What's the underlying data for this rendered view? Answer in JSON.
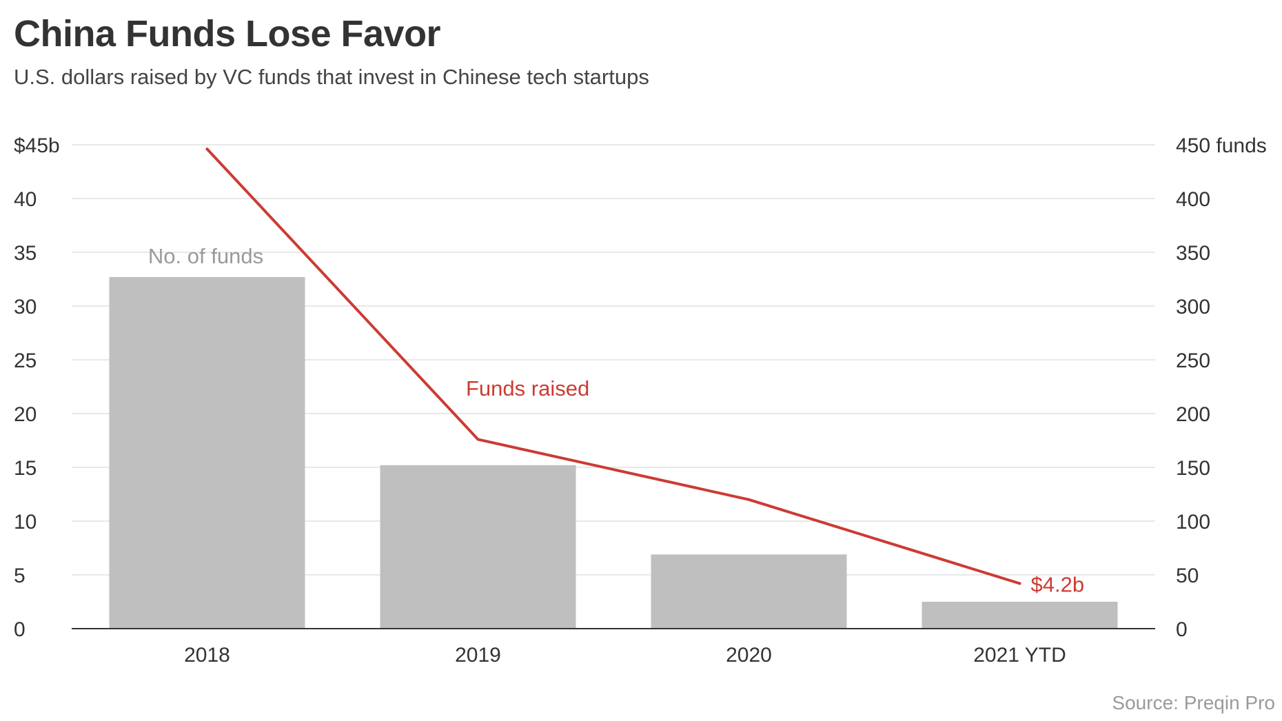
{
  "title": "China Funds Lose Favor",
  "subtitle": "U.S. dollars raised by VC funds that invest in Chinese tech startups",
  "source": "Source: Preqin Pro",
  "chart_data": {
    "type": "bar",
    "categories": [
      "2018",
      "2019",
      "2020",
      "2021 YTD"
    ],
    "series": [
      {
        "type": "bar",
        "axis": "right",
        "values": [
          327,
          152,
          69,
          25
        ],
        "color": "#bfbfbf",
        "label": "No. of funds"
      },
      {
        "type": "line",
        "axis": "left",
        "values": [
          44.6,
          17.6,
          12.0,
          4.2
        ],
        "color": "#cc3b33",
        "label": "Funds raised",
        "end_label": "$4.2b"
      }
    ],
    "y_left": {
      "ylim": [
        0,
        45
      ],
      "ticks": [
        0,
        5,
        10,
        15,
        20,
        25,
        30,
        35,
        40,
        45
      ],
      "tick_labels": [
        "0",
        "5",
        "10",
        "15",
        "20",
        "25",
        "30",
        "35",
        "40",
        "$45b"
      ]
    },
    "y_right": {
      "ylim": [
        0,
        450
      ],
      "ticks": [
        0,
        50,
        100,
        150,
        200,
        250,
        300,
        350,
        400,
        450
      ],
      "tick_labels": [
        "0",
        "50",
        "100",
        "150",
        "200",
        "250",
        "300",
        "350",
        "400",
        "450 funds"
      ]
    },
    "grid": true,
    "grid_color": "#e0e0e0",
    "axis_color": "#333333",
    "label_color": "#333333",
    "bar_label_color": "#9a9a9a"
  }
}
